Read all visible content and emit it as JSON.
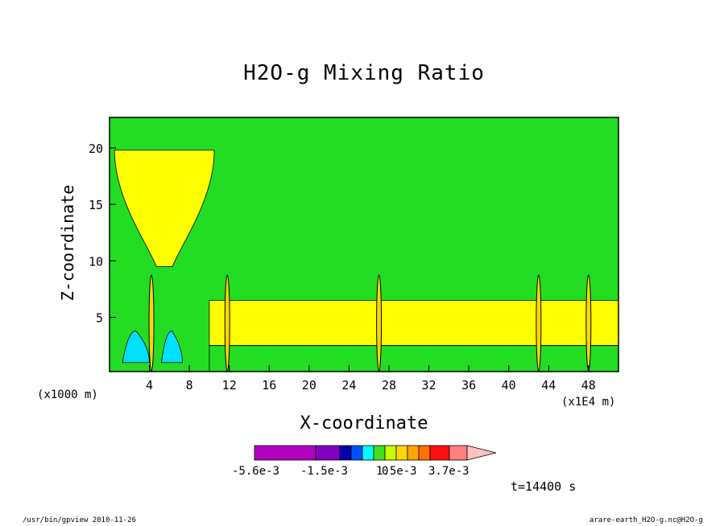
{
  "chart_data": {
    "type": "heatmap",
    "title": "H2O-g Mixing Ratio",
    "xlabel": "X-coordinate",
    "ylabel": "Z-coordinate",
    "x_unit": "(x1000 m)",
    "x_unit_extra": "(x1E4 m)",
    "xlim": [
      0,
      51
    ],
    "ylim": [
      0.2,
      22.7
    ],
    "xticks": [
      4,
      8,
      12,
      16,
      20,
      24,
      28,
      32,
      36,
      40,
      44,
      48
    ],
    "yticks": [
      5,
      10,
      15,
      20
    ],
    "colorbar": {
      "labels": [
        "-5.6e-3",
        "-1.5e-3",
        "0",
        "1.5e-3",
        "3.7e-3"
      ],
      "colors": [
        "#b000c0",
        "#8000c0",
        "#0000b0",
        "#0050ff",
        "#00ffff",
        "#40e020",
        "#c8ff00",
        "#ffd700",
        "#ffa500",
        "#ff7000",
        "#ff1010",
        "#ff8080",
        "#ffc0c0"
      ]
    },
    "annotation": "t=14400 s",
    "background_color": "#22dd22",
    "regions": [
      {
        "name": "upper-plume",
        "color": "#ffff00",
        "x": [
          0.5,
          10.5
        ],
        "z": [
          9.5,
          19.8
        ]
      },
      {
        "name": "low-level-band",
        "color": "#ffff00",
        "x": [
          10,
          51
        ],
        "z": [
          2.5,
          6.5
        ]
      },
      {
        "name": "surface-layer",
        "color": "#22dd22",
        "x": [
          10,
          51
        ],
        "z": [
          0.2,
          2.5
        ]
      },
      {
        "name": "negative-lobe-left",
        "color": "#00e0ff",
        "x": [
          1.3,
          4.0
        ],
        "z": [
          1.0,
          3.8
        ]
      },
      {
        "name": "negative-lobe-right",
        "color": "#00e0ff",
        "x": [
          5.2,
          7.3
        ],
        "z": [
          1.0,
          3.8
        ]
      }
    ],
    "convective_columns_x": [
      4.2,
      11.8,
      27,
      43,
      48
    ]
  },
  "footer": {
    "left": "/usr/bin/gpview  2010-11-26",
    "right": "arare-earth_H2O-g.nc@H2O-g"
  }
}
